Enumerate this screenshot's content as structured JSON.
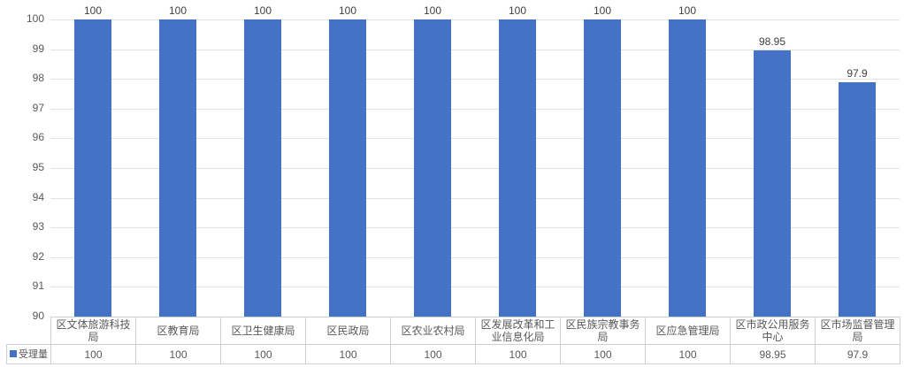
{
  "chart_data": {
    "type": "bar",
    "title": "",
    "categories": [
      "区文体旅游科技局",
      "区教育局",
      "区卫生健康局",
      "区民政局",
      "区农业农村局",
      "区发展改革和工业信息化局",
      "区民族宗教事务局",
      "区应急管理局",
      "区市政公用服务中心",
      "区市场监督管理局"
    ],
    "series": [
      {
        "name": "受理量",
        "color": "#4472C4",
        "values": [
          100,
          100,
          100,
          100,
          100,
          100,
          100,
          100,
          98.95,
          97.9
        ]
      }
    ],
    "data_labels": [
      "100",
      "100",
      "100",
      "100",
      "100",
      "100",
      "100",
      "100",
      "98.95",
      "97.9"
    ],
    "xlabel": "",
    "ylabel": "",
    "ylim": [
      90,
      100
    ],
    "yticks": [
      100,
      99,
      98,
      97,
      96,
      95,
      94,
      93,
      92,
      91,
      90
    ],
    "grid": "horizontal",
    "legend_position": "data-table-left",
    "data_table_shown": true
  },
  "legend": {
    "label": "受理量"
  },
  "colors": {
    "bar": "#4472C4",
    "gridline": "#E2E2E2",
    "table_border": "#D0D0D0",
    "axis_text": "#595959",
    "table_text": "#595959",
    "data_label_text": "#404040",
    "background": "#FFFFFF"
  }
}
